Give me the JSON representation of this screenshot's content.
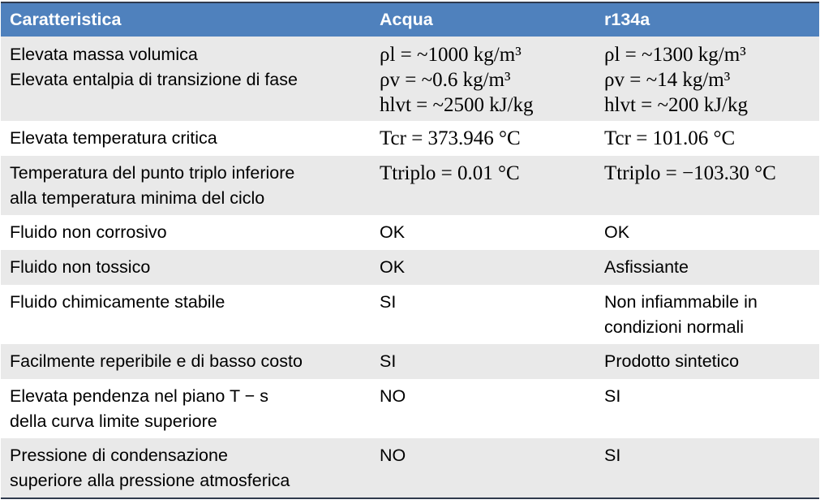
{
  "table": {
    "headers": [
      "Caratteristica",
      "Acqua",
      "r134a"
    ],
    "rows": [
      {
        "shade": true,
        "feature": [
          "Elevata massa volumica",
          "Elevata entalpia di transizione di fase"
        ],
        "acqua": [
          "ρl = ~1000 kg/m³",
          "ρv = ~0.6 kg/m³",
          "hlvt = ~2500 kJ/kg"
        ],
        "r134a": [
          "ρl = ~1300 kg/m³",
          "ρv = ~14 kg/m³",
          "hlvt = ~200 kJ/kg"
        ]
      },
      {
        "shade": false,
        "feature": [
          "Elevata temperatura critica"
        ],
        "acqua": [
          "Tcr = 373.946 °C"
        ],
        "r134a": [
          "Tcr = 101.06 °C"
        ]
      },
      {
        "shade": true,
        "feature": [
          "Temperatura del punto triplo inferiore",
          "alla temperatura minima del ciclo"
        ],
        "acqua": [
          "Ttriplo = 0.01 °C"
        ],
        "r134a": [
          "Ttriplo = −103.30 °C"
        ]
      },
      {
        "shade": false,
        "feature": [
          "Fluido non corrosivo"
        ],
        "acqua": [
          "OK"
        ],
        "r134a": [
          "OK"
        ]
      },
      {
        "shade": true,
        "feature": [
          "Fluido non tossico"
        ],
        "acqua": [
          "OK"
        ],
        "r134a": [
          "Asfissiante"
        ]
      },
      {
        "shade": false,
        "feature": [
          "Fluido chimicamente stabile"
        ],
        "acqua": [
          "SI"
        ],
        "r134a": [
          "Non infiammabile in",
          "condizioni normali"
        ]
      },
      {
        "shade": true,
        "feature": [
          "Facilmente reperibile e di basso costo"
        ],
        "acqua": [
          "SI"
        ],
        "r134a": [
          "Prodotto sintetico"
        ]
      },
      {
        "shade": false,
        "feature": [
          "Elevata pendenza nel piano T − s",
          "della curva limite superiore"
        ],
        "acqua": [
          "NO"
        ],
        "r134a": [
          "SI"
        ]
      },
      {
        "shade": true,
        "feature": [
          "Pressione di condensazione",
          "superiore alla pressione atmosferica"
        ],
        "acqua": [
          "NO"
        ],
        "r134a": [
          "SI"
        ]
      }
    ]
  }
}
